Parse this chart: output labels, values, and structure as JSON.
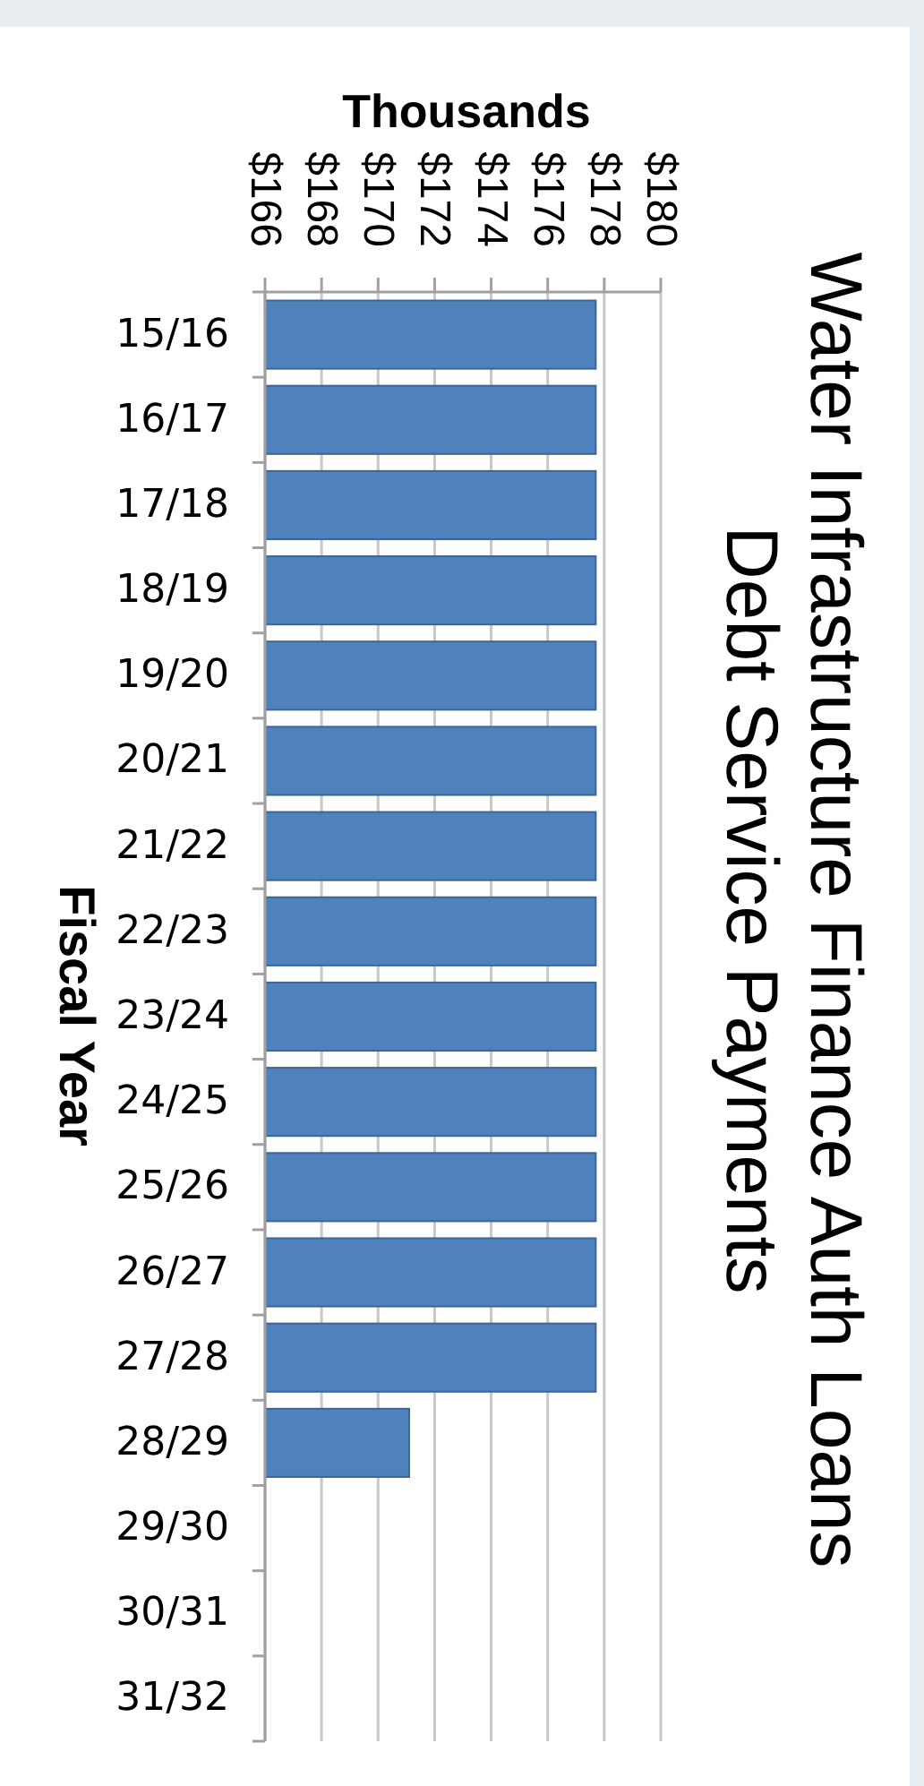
{
  "chart_data": {
    "type": "bar",
    "orientation": "horizontal",
    "title": "Water Infrastructure Finance Auth Loans",
    "subtitle": "Debt Service Payments",
    "xlabel": "Thousands",
    "ylabel": "Fiscal Year",
    "categories": [
      "15/16",
      "16/17",
      "17/18",
      "18/19",
      "19/20",
      "20/21",
      "21/22",
      "22/23",
      "23/24",
      "24/25",
      "25/26",
      "26/27",
      "27/28",
      "28/29",
      "29/30",
      "30/31",
      "31/32"
    ],
    "values": [
      177.7,
      177.7,
      177.7,
      177.7,
      177.7,
      177.7,
      177.7,
      177.7,
      177.7,
      177.7,
      177.7,
      177.7,
      177.7,
      171.1,
      null,
      null,
      null
    ],
    "color": "#4f81bd",
    "xlim": [
      166,
      180
    ],
    "xticks": [
      {
        "value": 166,
        "label": "$166"
      },
      {
        "value": 168,
        "label": "$168"
      },
      {
        "value": 170,
        "label": "$170"
      },
      {
        "value": 172,
        "label": "$172"
      },
      {
        "value": 174,
        "label": "$174"
      },
      {
        "value": 176,
        "label": "$176"
      },
      {
        "value": 178,
        "label": "$178"
      },
      {
        "value": 180,
        "label": "$180"
      }
    ],
    "grid": "x"
  }
}
